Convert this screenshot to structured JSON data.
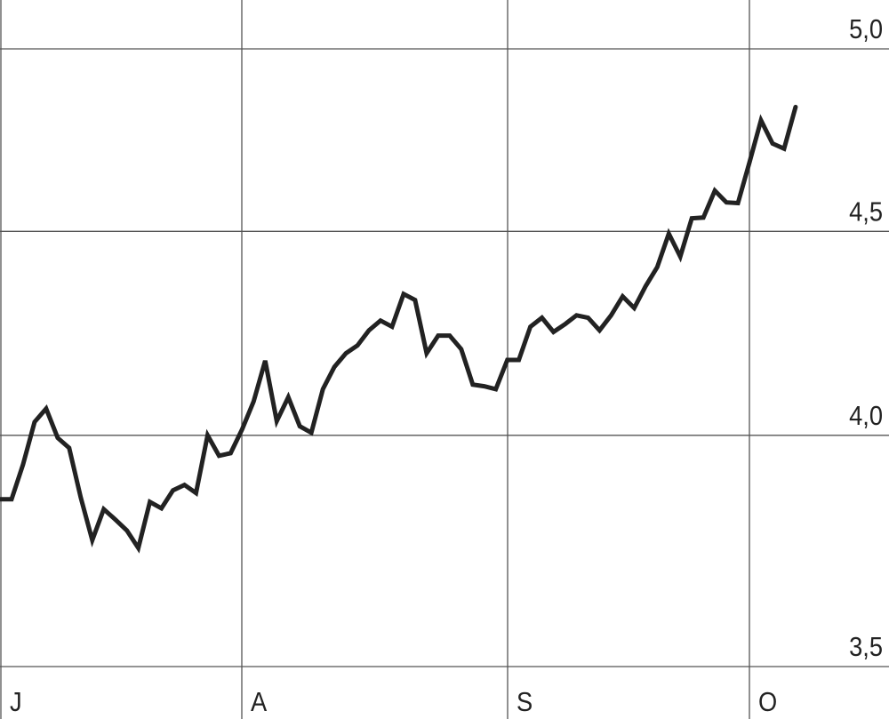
{
  "chart_data": {
    "type": "line",
    "title": "",
    "xlabel": "",
    "ylabel": "",
    "y_scale": "log",
    "ylim": [
      3.5,
      5.0
    ],
    "grid": true,
    "y_ticks": [
      {
        "value": 5.0,
        "label": "5,0"
      },
      {
        "value": 4.5,
        "label": "4,5"
      },
      {
        "value": 4.0,
        "label": "4,0"
      },
      {
        "value": 3.5,
        "label": "3,5"
      }
    ],
    "x_ticks": [
      "J",
      "A",
      "S",
      "O"
    ],
    "line_color": "#222222",
    "grid_color": "#555555",
    "values": [
      3.855,
      3.855,
      3.933,
      4.031,
      4.062,
      3.994,
      3.971,
      3.859,
      3.765,
      3.833,
      3.81,
      3.786,
      3.748,
      3.849,
      3.835,
      3.875,
      3.887,
      3.869,
      4.0,
      3.953,
      3.959,
      4.014,
      4.079,
      4.176,
      4.033,
      4.089,
      4.021,
      4.006,
      4.108,
      4.161,
      4.194,
      4.213,
      4.25,
      4.274,
      4.259,
      4.34,
      4.325,
      4.194,
      4.237,
      4.237,
      4.204,
      4.119,
      4.115,
      4.108,
      4.178,
      4.178,
      4.259,
      4.281,
      4.246,
      4.265,
      4.287,
      4.281,
      4.25,
      4.287,
      4.334,
      4.305,
      4.36,
      4.408,
      4.494,
      4.435,
      4.534,
      4.536,
      4.607,
      4.576,
      4.574,
      4.683,
      4.798,
      4.734,
      4.72,
      4.835
    ]
  }
}
